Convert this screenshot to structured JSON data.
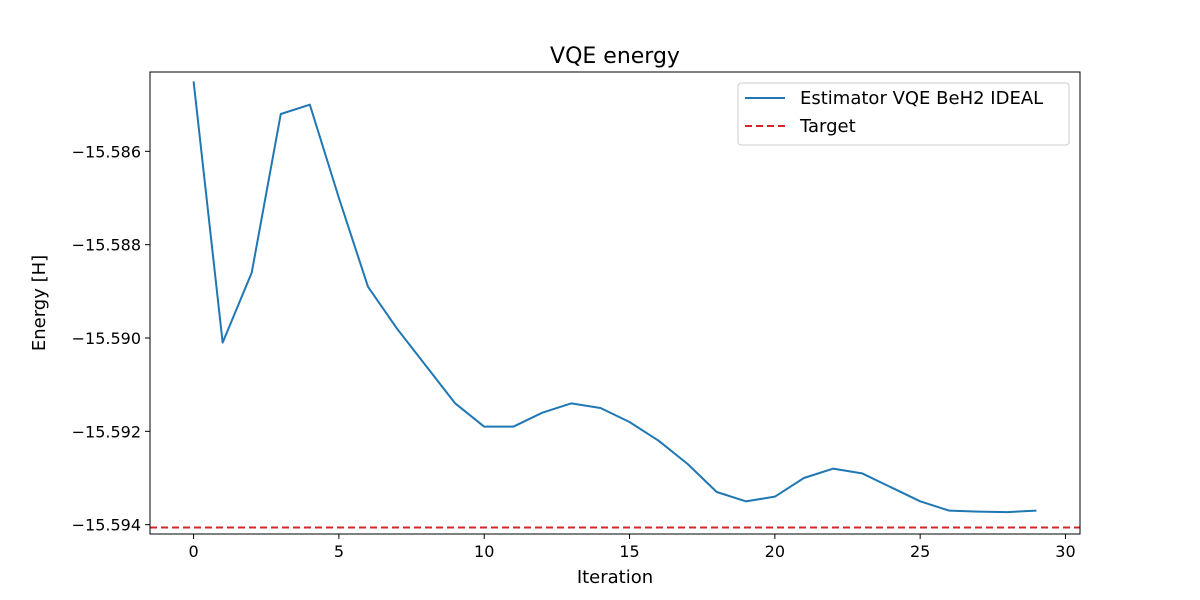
{
  "chart_data": {
    "type": "line",
    "title": "VQE energy",
    "xlabel": "Iteration",
    "ylabel": "Energy [H]",
    "xlim": [
      -1.5,
      30.5
    ],
    "ylim": [
      -15.5942,
      -15.5843
    ],
    "xticks": [
      0,
      5,
      10,
      15,
      20,
      25,
      30
    ],
    "yticks": [
      -15.586,
      -15.588,
      -15.59,
      -15.592,
      -15.594
    ],
    "ytick_labels": [
      "−15.586",
      "−15.588",
      "−15.590",
      "−15.592",
      "−15.594"
    ],
    "grid": false,
    "legend_position": "top-right",
    "series": [
      {
        "name": "Estimator VQE BeH2 IDEAL",
        "color": "#1f77b4",
        "style": "solid",
        "x": [
          0,
          1,
          2,
          3,
          4,
          5,
          6,
          7,
          8,
          9,
          10,
          11,
          12,
          13,
          14,
          15,
          16,
          17,
          18,
          19,
          20,
          21,
          22,
          23,
          24,
          25,
          26,
          27,
          28,
          29
        ],
        "y": [
          -15.5845,
          -15.5901,
          -15.5886,
          -15.5852,
          -15.585,
          -15.587,
          -15.5889,
          -15.5898,
          -15.5906,
          -15.5914,
          -15.5919,
          -15.5919,
          -15.5916,
          -15.5914,
          -15.5915,
          -15.5918,
          -15.5922,
          -15.5927,
          -15.5933,
          -15.5935,
          -15.5934,
          -15.593,
          -15.5928,
          -15.5929,
          -15.5932,
          -15.5935,
          -15.5937,
          -15.59372,
          -15.59373,
          -15.5937
        ]
      },
      {
        "name": "Target",
        "color": "#d62728",
        "style": "dashed",
        "y_constant": -15.59406
      }
    ]
  }
}
